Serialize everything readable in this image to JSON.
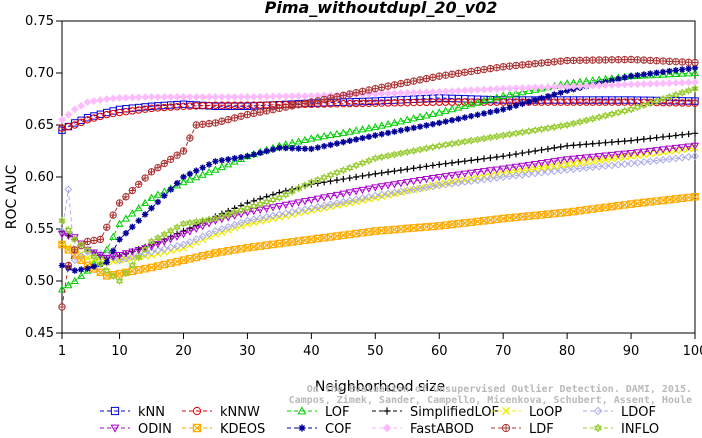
{
  "chart_data": {
    "type": "line",
    "title": "Pima_withoutdupl_20_v02",
    "xlabel": "Neighborhood size",
    "ylabel": "ROC AUC",
    "xlim": [
      1,
      100
    ],
    "ylim": [
      0.45,
      0.75
    ],
    "x_ticks": [
      1,
      10,
      20,
      30,
      40,
      50,
      60,
      70,
      80,
      90,
      100
    ],
    "y_ticks": [
      "0.45",
      "0.50",
      "0.55",
      "0.60",
      "0.65",
      "0.70",
      "0.75"
    ],
    "x_tick_labels": [
      "1",
      "10",
      "20",
      "30",
      "40",
      "50",
      "60",
      "70",
      "80",
      "90",
      "100"
    ],
    "grid": false,
    "legend_placement": "bottom",
    "watermark": [
      "Campos, Zimek, Sander, Campello, Micenkova, Schubert, Assent, Houle",
      "On the Evaluation of Unsupervised Outlier Detection. DAMI, 2015."
    ],
    "series": [
      {
        "name": "kNN",
        "color": "#0000dd",
        "marker": "square",
        "points": [
          [
            1,
            0.645
          ],
          [
            3,
            0.652
          ],
          [
            5,
            0.657
          ],
          [
            8,
            0.662
          ],
          [
            10,
            0.665
          ],
          [
            15,
            0.668
          ],
          [
            20,
            0.67
          ],
          [
            25,
            0.668
          ],
          [
            30,
            0.668
          ],
          [
            40,
            0.671
          ],
          [
            50,
            0.673
          ],
          [
            60,
            0.676
          ],
          [
            70,
            0.674
          ],
          [
            80,
            0.674
          ],
          [
            90,
            0.674
          ],
          [
            100,
            0.673
          ]
        ]
      },
      {
        "name": "kNNW",
        "color": "#dd0000",
        "marker": "circle",
        "points": [
          [
            1,
            0.647
          ],
          [
            3,
            0.65
          ],
          [
            5,
            0.655
          ],
          [
            8,
            0.66
          ],
          [
            10,
            0.662
          ],
          [
            15,
            0.666
          ],
          [
            20,
            0.668
          ],
          [
            25,
            0.669
          ],
          [
            30,
            0.669
          ],
          [
            40,
            0.67
          ],
          [
            50,
            0.671
          ],
          [
            60,
            0.672
          ],
          [
            70,
            0.672
          ],
          [
            80,
            0.672
          ],
          [
            90,
            0.672
          ],
          [
            100,
            0.671
          ]
        ]
      },
      {
        "name": "LOF",
        "color": "#00cc00",
        "marker": "triangle-up",
        "points": [
          [
            1,
            0.492
          ],
          [
            3,
            0.5
          ],
          [
            5,
            0.51
          ],
          [
            8,
            0.53
          ],
          [
            10,
            0.555
          ],
          [
            15,
            0.58
          ],
          [
            20,
            0.595
          ],
          [
            25,
            0.607
          ],
          [
            30,
            0.62
          ],
          [
            35,
            0.63
          ],
          [
            40,
            0.637
          ],
          [
            50,
            0.648
          ],
          [
            60,
            0.662
          ],
          [
            70,
            0.678
          ],
          [
            80,
            0.69
          ],
          [
            90,
            0.697
          ],
          [
            100,
            0.7
          ]
        ]
      },
      {
        "name": "SimplifiedLOF",
        "color": "#000000",
        "marker": "plus",
        "points": [
          [
            1,
            0.548
          ],
          [
            3,
            0.54
          ],
          [
            5,
            0.53
          ],
          [
            8,
            0.522
          ],
          [
            10,
            0.524
          ],
          [
            15,
            0.535
          ],
          [
            20,
            0.548
          ],
          [
            25,
            0.562
          ],
          [
            30,
            0.575
          ],
          [
            35,
            0.585
          ],
          [
            40,
            0.593
          ],
          [
            50,
            0.603
          ],
          [
            60,
            0.612
          ],
          [
            70,
            0.62
          ],
          [
            80,
            0.63
          ],
          [
            90,
            0.635
          ],
          [
            100,
            0.642
          ]
        ]
      },
      {
        "name": "LoOP",
        "color": "#eeee00",
        "marker": "x",
        "points": [
          [
            1,
            0.535
          ],
          [
            3,
            0.53
          ],
          [
            5,
            0.522
          ],
          [
            8,
            0.518
          ],
          [
            10,
            0.52
          ],
          [
            15,
            0.525
          ],
          [
            20,
            0.532
          ],
          [
            25,
            0.545
          ],
          [
            30,
            0.555
          ],
          [
            40,
            0.568
          ],
          [
            50,
            0.58
          ],
          [
            60,
            0.593
          ],
          [
            70,
            0.603
          ],
          [
            80,
            0.612
          ],
          [
            90,
            0.62
          ],
          [
            100,
            0.628
          ]
        ]
      },
      {
        "name": "LDOF",
        "color": "#aaaaee",
        "marker": "diamond",
        "points": [
          [
            1,
            0.548
          ],
          [
            2,
            0.588
          ],
          [
            3,
            0.52
          ],
          [
            5,
            0.528
          ],
          [
            8,
            0.525
          ],
          [
            10,
            0.52
          ],
          [
            15,
            0.528
          ],
          [
            20,
            0.535
          ],
          [
            25,
            0.548
          ],
          [
            30,
            0.558
          ],
          [
            40,
            0.57
          ],
          [
            50,
            0.582
          ],
          [
            60,
            0.592
          ],
          [
            70,
            0.6
          ],
          [
            80,
            0.607
          ],
          [
            90,
            0.613
          ],
          [
            100,
            0.62
          ]
        ]
      },
      {
        "name": "ODIN",
        "color": "#aa00cc",
        "marker": "triangle-down",
        "points": [
          [
            1,
            0.545
          ],
          [
            3,
            0.542
          ],
          [
            5,
            0.53
          ],
          [
            8,
            0.522
          ],
          [
            10,
            0.525
          ],
          [
            15,
            0.533
          ],
          [
            20,
            0.545
          ],
          [
            25,
            0.558
          ],
          [
            30,
            0.566
          ],
          [
            40,
            0.578
          ],
          [
            50,
            0.59
          ],
          [
            60,
            0.6
          ],
          [
            70,
            0.608
          ],
          [
            80,
            0.617
          ],
          [
            90,
            0.623
          ],
          [
            100,
            0.63
          ]
        ]
      },
      {
        "name": "KDEOS",
        "color": "#ffaa00",
        "marker": "square-x",
        "points": [
          [
            1,
            0.535
          ],
          [
            3,
            0.525
          ],
          [
            5,
            0.515
          ],
          [
            8,
            0.505
          ],
          [
            10,
            0.507
          ],
          [
            15,
            0.513
          ],
          [
            20,
            0.52
          ],
          [
            25,
            0.527
          ],
          [
            30,
            0.532
          ],
          [
            40,
            0.54
          ],
          [
            50,
            0.548
          ],
          [
            60,
            0.553
          ],
          [
            70,
            0.56
          ],
          [
            80,
            0.566
          ],
          [
            90,
            0.574
          ],
          [
            100,
            0.581
          ]
        ]
      },
      {
        "name": "COF",
        "color": "#000099",
        "marker": "asterisk",
        "points": [
          [
            1,
            0.515
          ],
          [
            3,
            0.51
          ],
          [
            5,
            0.512
          ],
          [
            8,
            0.518
          ],
          [
            10,
            0.54
          ],
          [
            15,
            0.57
          ],
          [
            20,
            0.6
          ],
          [
            25,
            0.615
          ],
          [
            30,
            0.62
          ],
          [
            35,
            0.628
          ],
          [
            40,
            0.627
          ],
          [
            50,
            0.64
          ],
          [
            60,
            0.652
          ],
          [
            70,
            0.665
          ],
          [
            80,
            0.683
          ],
          [
            90,
            0.697
          ],
          [
            100,
            0.705
          ]
        ]
      },
      {
        "name": "FastABOD",
        "color": "#ffbbff",
        "marker": "diamond-filled",
        "points": [
          [
            1,
            0.655
          ],
          [
            3,
            0.665
          ],
          [
            5,
            0.672
          ],
          [
            8,
            0.675
          ],
          [
            10,
            0.676
          ],
          [
            15,
            0.677
          ],
          [
            20,
            0.677
          ],
          [
            25,
            0.677
          ],
          [
            30,
            0.677
          ],
          [
            40,
            0.678
          ],
          [
            50,
            0.68
          ],
          [
            60,
            0.682
          ],
          [
            70,
            0.685
          ],
          [
            80,
            0.687
          ],
          [
            90,
            0.689
          ],
          [
            100,
            0.691
          ]
        ]
      },
      {
        "name": "LDF",
        "color": "#aa3333",
        "marker": "circle-plus",
        "points": [
          [
            1,
            0.475
          ],
          [
            2,
            0.515
          ],
          [
            3,
            0.53
          ],
          [
            5,
            0.538
          ],
          [
            7,
            0.54
          ],
          [
            10,
            0.575
          ],
          [
            15,
            0.605
          ],
          [
            20,
            0.625
          ],
          [
            22,
            0.65
          ],
          [
            25,
            0.652
          ],
          [
            30,
            0.66
          ],
          [
            40,
            0.672
          ],
          [
            50,
            0.685
          ],
          [
            60,
            0.697
          ],
          [
            70,
            0.706
          ],
          [
            80,
            0.712
          ],
          [
            90,
            0.713
          ],
          [
            100,
            0.71
          ]
        ]
      },
      {
        "name": "INFLO",
        "color": "#99cc33",
        "marker": "star",
        "points": [
          [
            1,
            0.558
          ],
          [
            3,
            0.54
          ],
          [
            5,
            0.53
          ],
          [
            8,
            0.51
          ],
          [
            10,
            0.5
          ],
          [
            15,
            0.538
          ],
          [
            20,
            0.555
          ],
          [
            25,
            0.56
          ],
          [
            30,
            0.57
          ],
          [
            35,
            0.58
          ],
          [
            40,
            0.595
          ],
          [
            50,
            0.618
          ],
          [
            60,
            0.63
          ],
          [
            70,
            0.64
          ],
          [
            80,
            0.65
          ],
          [
            90,
            0.665
          ],
          [
            100,
            0.685
          ]
        ]
      }
    ]
  }
}
